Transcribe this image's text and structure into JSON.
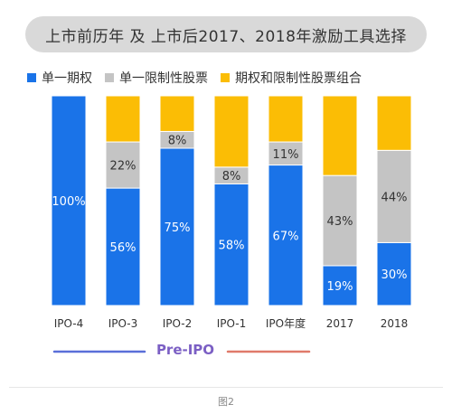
{
  "header": {
    "title": "上市前历年 及 上市后2017、2018年激励工具选择"
  },
  "caption": "图2",
  "bracket_label": "Pre-IPO",
  "colors": {
    "blue": "#1a73e8",
    "gray": "#c4c4c4",
    "yellow": "#fbbd05"
  },
  "chart_data": {
    "type": "bar",
    "stacked": true,
    "normalized": true,
    "title": "上市前历年 及 上市后2017、2018年激励工具选择",
    "categories": [
      "IPO-4",
      "IPO-3",
      "IPO-2",
      "IPO-1",
      "IPO年度",
      "2017",
      "2018"
    ],
    "series": [
      {
        "name": "单一期权",
        "color": "#1a73e8",
        "values": [
          100,
          56,
          75,
          58,
          67,
          19,
          30
        ]
      },
      {
        "name": "单一限制性股票",
        "color": "#c4c4c4",
        "values": [
          0,
          22,
          8,
          8,
          11,
          43,
          44
        ]
      },
      {
        "name": "期权和限制性股票组合",
        "color": "#fbbd05",
        "values": [
          0,
          22,
          17,
          34,
          22,
          38,
          26
        ]
      }
    ],
    "data_labels": [
      [
        "100%",
        "",
        ""
      ],
      [
        "56%",
        "22%",
        ""
      ],
      [
        "75%",
        "8%",
        ""
      ],
      [
        "58%",
        "8%",
        ""
      ],
      [
        "67%",
        "11%",
        ""
      ],
      [
        "19%",
        "43%",
        ""
      ],
      [
        "30%",
        "44%",
        ""
      ]
    ],
    "ylim": [
      0,
      100
    ],
    "legend": "top"
  }
}
